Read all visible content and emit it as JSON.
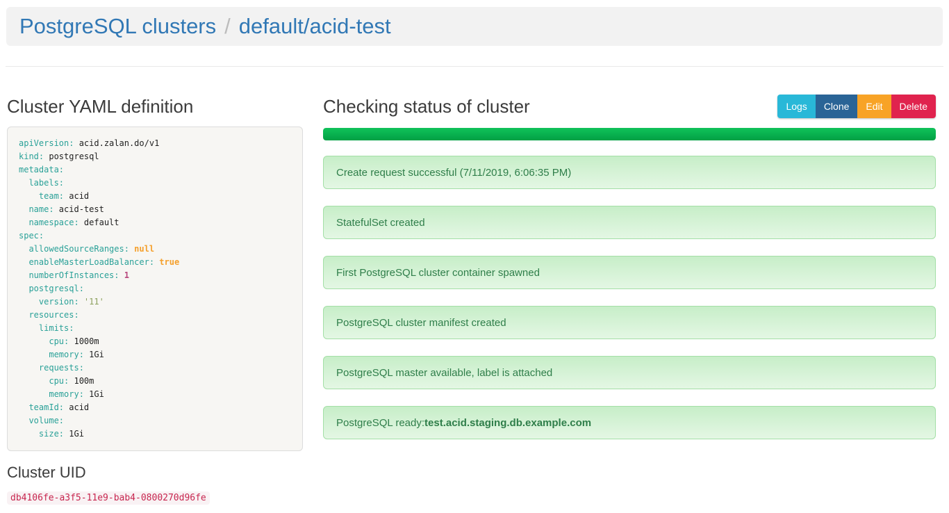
{
  "header": {
    "breadcrumb_root": "PostgreSQL clusters",
    "separator": "/",
    "breadcrumb_current": "default/acid-test"
  },
  "yaml_section": {
    "title": "Cluster YAML definition",
    "lines": [
      {
        "i": 0,
        "k": "apiVersion",
        "v": "acid.zalan.do/v1",
        "t": "plain"
      },
      {
        "i": 0,
        "k": "kind",
        "v": "postgresql",
        "t": "plain"
      },
      {
        "i": 0,
        "k": "metadata",
        "v": "",
        "t": "none"
      },
      {
        "i": 1,
        "k": "labels",
        "v": "",
        "t": "none"
      },
      {
        "i": 2,
        "k": "team",
        "v": "acid",
        "t": "plain"
      },
      {
        "i": 1,
        "k": "name",
        "v": "acid-test",
        "t": "plain"
      },
      {
        "i": 1,
        "k": "namespace",
        "v": "default",
        "t": "plain"
      },
      {
        "i": 0,
        "k": "spec",
        "v": "",
        "t": "none"
      },
      {
        "i": 1,
        "k": "allowedSourceRanges",
        "v": "null",
        "t": "kw"
      },
      {
        "i": 1,
        "k": "enableMasterLoadBalancer",
        "v": "true",
        "t": "kw"
      },
      {
        "i": 1,
        "k": "numberOfInstances",
        "v": "1",
        "t": "num"
      },
      {
        "i": 1,
        "k": "postgresql",
        "v": "",
        "t": "none"
      },
      {
        "i": 2,
        "k": "version",
        "v": "'11'",
        "t": "str"
      },
      {
        "i": 1,
        "k": "resources",
        "v": "",
        "t": "none"
      },
      {
        "i": 2,
        "k": "limits",
        "v": "",
        "t": "none"
      },
      {
        "i": 3,
        "k": "cpu",
        "v": "1000m",
        "t": "plain"
      },
      {
        "i": 3,
        "k": "memory",
        "v": "1Gi",
        "t": "plain"
      },
      {
        "i": 2,
        "k": "requests",
        "v": "",
        "t": "none"
      },
      {
        "i": 3,
        "k": "cpu",
        "v": "100m",
        "t": "plain"
      },
      {
        "i": 3,
        "k": "memory",
        "v": "1Gi",
        "t": "plain"
      },
      {
        "i": 1,
        "k": "teamId",
        "v": "acid",
        "t": "plain"
      },
      {
        "i": 1,
        "k": "volume",
        "v": "",
        "t": "none"
      },
      {
        "i": 2,
        "k": "size",
        "v": "1Gi",
        "t": "plain"
      }
    ]
  },
  "uid_section": {
    "title": "Cluster UID",
    "uid": "db4106fe-a3f5-11e9-bab4-0800270d96fe"
  },
  "status_section": {
    "title": "Checking status of cluster",
    "buttons": [
      {
        "label": "Logs",
        "color": "#29b8d8"
      },
      {
        "label": "Clone",
        "color": "#2a6496"
      },
      {
        "label": "Edit",
        "color": "#f8a326"
      },
      {
        "label": "Delete",
        "color": "#e0234e"
      }
    ],
    "progress_percent": 100,
    "messages": [
      {
        "text": "Create request successful (7/11/2019, 6:06:35 PM)"
      },
      {
        "text": "StatefulSet created"
      },
      {
        "text": "First PostgreSQL cluster container spawned"
      },
      {
        "text": "PostgreSQL cluster manifest created"
      },
      {
        "text": "PostgreSQL master available, label is attached"
      },
      {
        "text": "PostgreSQL ready: ",
        "bold": "test.acid.staging.db.example.com"
      }
    ]
  },
  "colors": {
    "link_blue": "#3178b5",
    "progress_green": "#02a044",
    "alert_text_green": "#2f7e4a",
    "uid_pink": "#c7254e",
    "yaml_key_teal": "#2aa198",
    "yaml_keyword_orange": "#f5a02c",
    "yaml_number_magenta": "#b8487d",
    "yaml_string_green": "#8ba05c"
  }
}
